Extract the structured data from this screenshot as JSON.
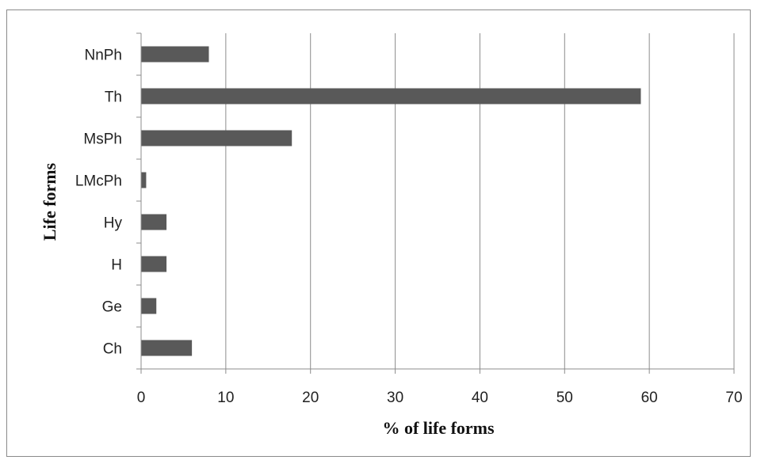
{
  "chart_data": {
    "type": "bar",
    "orientation": "horizontal",
    "categories": [
      "Ch",
      "Ge",
      "H",
      "Hy",
      "LMcPh",
      "MsPh",
      "Th",
      "NnPh"
    ],
    "values": [
      6,
      1.8,
      3,
      3,
      0.6,
      17.8,
      59,
      8
    ],
    "xlabel": "% of life forms",
    "ylabel": "Life forms",
    "xlim": [
      0,
      70
    ],
    "xticks": [
      0,
      10,
      20,
      30,
      40,
      50,
      60,
      70
    ],
    "grid": "vertical",
    "legend": "none",
    "bar_color": "#595959"
  }
}
